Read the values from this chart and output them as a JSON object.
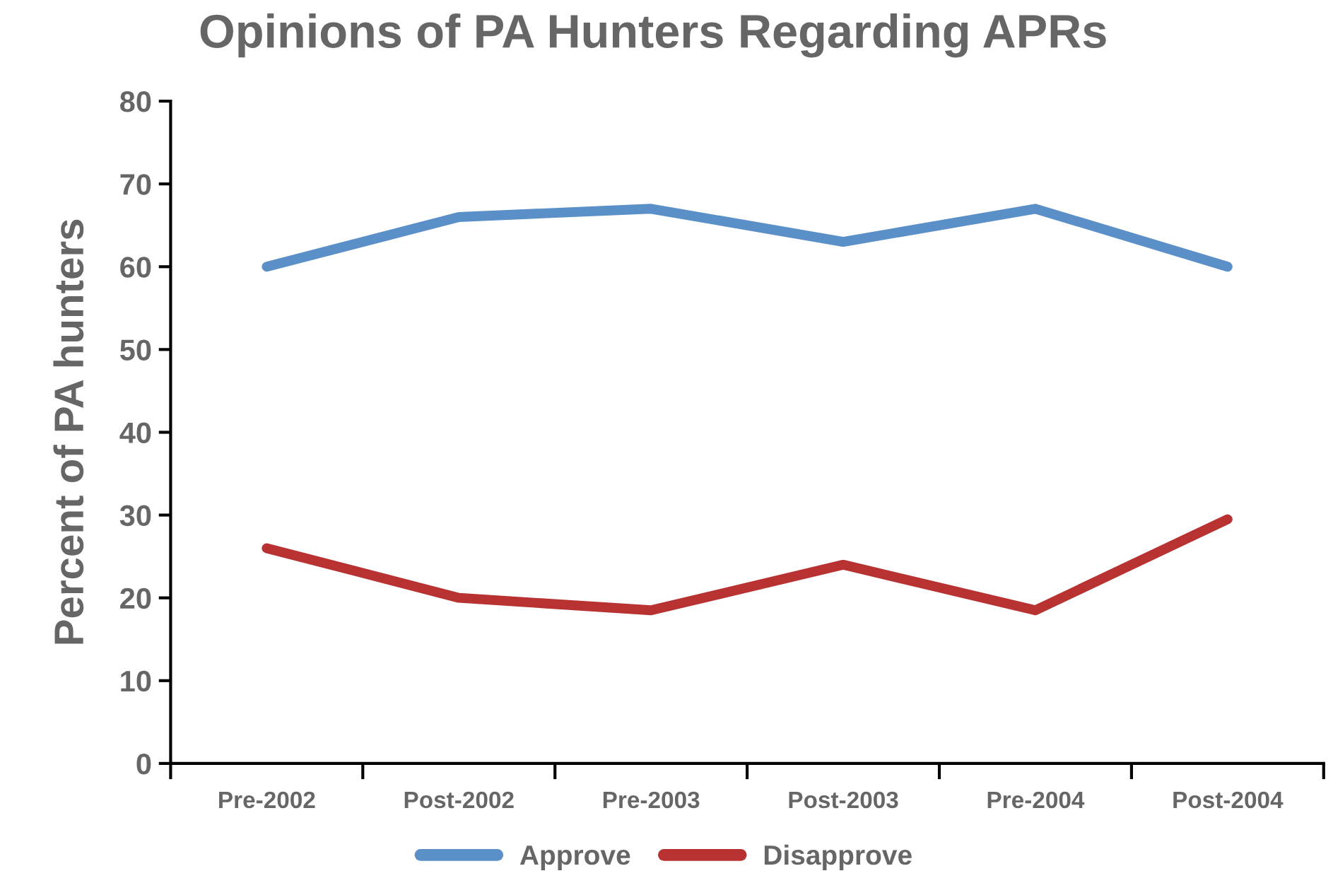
{
  "chart_data": {
    "type": "line",
    "title": "Opinions of PA Hunters Regarding APRs",
    "ylabel": "Percent of PA hunters",
    "categories": [
      "Pre-2002",
      "Post-2002",
      "Pre-2003",
      "Post-2003",
      "Pre-2004",
      "Post-2004"
    ],
    "series": [
      {
        "name": "Approve",
        "color": "#5b8fc7",
        "values": [
          60,
          66,
          67,
          63,
          67,
          60
        ]
      },
      {
        "name": "Disapprove",
        "color": "#b83232",
        "values": [
          26,
          20,
          18.5,
          24,
          18.5,
          29.5
        ]
      }
    ],
    "ylim": [
      0,
      80
    ],
    "yticks": [
      0,
      10,
      20,
      30,
      40,
      50,
      60,
      70,
      80
    ],
    "grid": false,
    "legend": "bottom",
    "marker": "none",
    "line_style": "solid"
  }
}
